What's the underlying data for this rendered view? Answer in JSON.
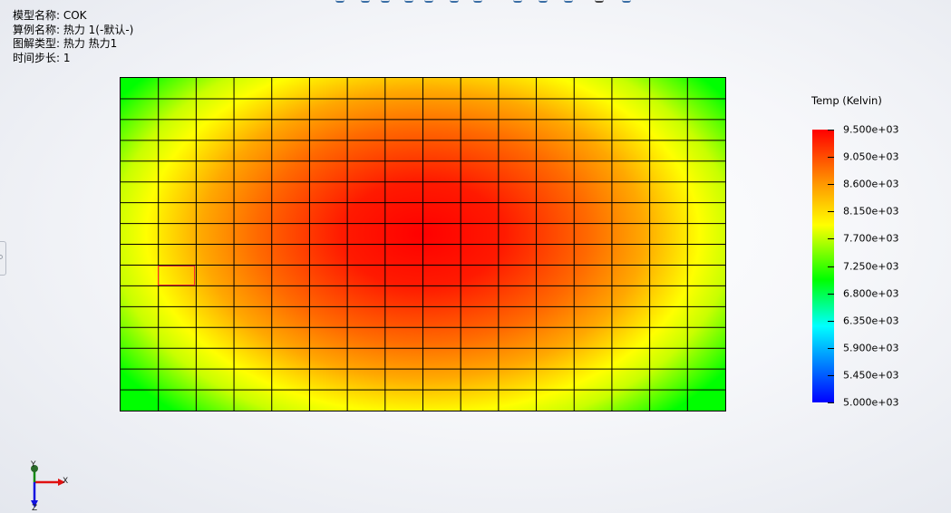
{
  "info": {
    "model_name": "模型名称: COK",
    "study_name": "算例名称: 热力 1(-默认-)",
    "plot_type": "图解类型: 热力 热力1",
    "time_step": "时间步长: 1"
  },
  "mesh": {
    "columns": 16,
    "rows": 16,
    "hot_color": "#ff0000",
    "cool_color": "#00ff00"
  },
  "legend": {
    "title": "Temp (Kelvin)",
    "max": 9500,
    "min": 5000,
    "labels": [
      "9.500e+03",
      "9.050e+03",
      "8.600e+03",
      "8.150e+03",
      "7.700e+03",
      "7.250e+03",
      "6.800e+03",
      "6.350e+03",
      "5.900e+03",
      "5.450e+03",
      "5.000e+03"
    ],
    "colors": [
      "#ff0000",
      "#ff9900",
      "#ffff00",
      "#00ff00",
      "#00ffff",
      "#0080ff",
      "#0000ff"
    ]
  },
  "triad": {
    "x_label": "X",
    "y_label": "Y",
    "z_label": "Z",
    "x_color": "#e01010",
    "y_color": "#108a10",
    "z_color": "#1010e0"
  }
}
